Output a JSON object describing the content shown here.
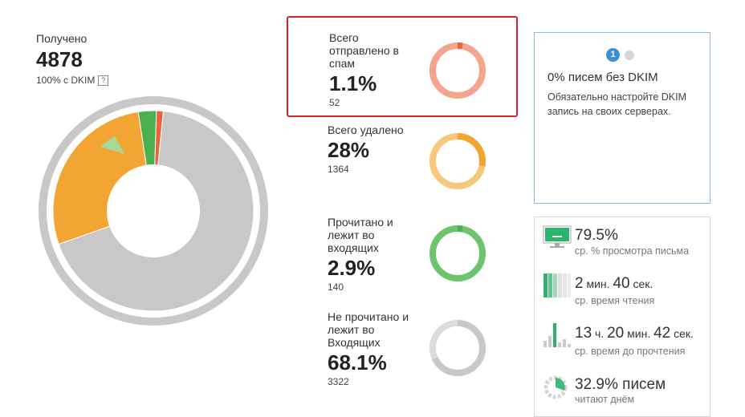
{
  "received": {
    "label": "Получено",
    "value": "4878",
    "dkim_text": "100% с DKIM",
    "help": "?"
  },
  "main_chart": {
    "type": "pie",
    "series": [
      {
        "value": 68.1,
        "color": "#c8c8c8"
      },
      {
        "value": 28.0,
        "color": "#f2a533"
      },
      {
        "value": 2.9,
        "color": "#4caf50"
      },
      {
        "value": 1.1,
        "color": "#e8653d"
      }
    ]
  },
  "stats": [
    {
      "label_lines": [
        "Всего",
        "отправлено в",
        "спам"
      ],
      "percent": "1.1%",
      "count": "52",
      "fraction": 0.011,
      "ring_color": "#f4a58c",
      "accent_color": "#e8653d",
      "highlighted": true
    },
    {
      "label_lines": [
        "Всего удалено"
      ],
      "percent": "28%",
      "count": "1364",
      "fraction": 0.28,
      "ring_color": "#f6c87c",
      "accent_color": "#f2a533",
      "highlighted": false
    },
    {
      "label_lines": [
        "Прочитано и",
        "лежит во",
        "входящих"
      ],
      "percent": "2.9%",
      "count": "140",
      "fraction": 0.029,
      "ring_color": "#6dc46d",
      "accent_color": "#4caf50",
      "highlighted": false
    },
    {
      "label_lines": [
        "Не прочитано и",
        "лежит во",
        "Входящих"
      ],
      "percent": "68.1%",
      "count": "3322",
      "fraction": 0.681,
      "ring_color": "#dcdcdc",
      "accent_color": "#c8c8c8",
      "highlighted": false
    }
  ],
  "info": {
    "pager_active": "1",
    "title": "0% писем без DKIM",
    "text_lines": [
      "Обязательно настройте DKIM",
      "запись на своих серверах."
    ]
  },
  "metrics": [
    {
      "value": "79.5%",
      "label": "ср. % просмотра письма"
    },
    {
      "parts": [
        "2",
        " мин. ",
        "40",
        " сек."
      ],
      "label": "ср. время чтения"
    },
    {
      "parts": [
        "13",
        " ч. ",
        "20",
        " мин. ",
        "42",
        " сек."
      ],
      "label": "ср. время до прочтения"
    },
    {
      "value": "32.9% писем",
      "label": "читают днём"
    }
  ]
}
